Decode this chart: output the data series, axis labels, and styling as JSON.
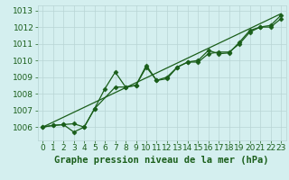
{
  "xlabel": "Graphe pression niveau de la mer (hPa)",
  "x_ticks": [
    0,
    1,
    2,
    3,
    4,
    5,
    6,
    7,
    8,
    9,
    10,
    11,
    12,
    13,
    14,
    15,
    16,
    17,
    18,
    19,
    20,
    21,
    22,
    23
  ],
  "ylim": [
    1005.2,
    1013.3
  ],
  "yticks": [
    1006,
    1007,
    1008,
    1009,
    1010,
    1011,
    1012,
    1013
  ],
  "line1_x": [
    0,
    1,
    2,
    3,
    4,
    5,
    6,
    7,
    8,
    9,
    10,
    11,
    12,
    13,
    14,
    15,
    16,
    17,
    18,
    19,
    20,
    21,
    22,
    23
  ],
  "line1_y": [
    1006.0,
    1006.1,
    1006.15,
    1006.2,
    1006.0,
    1007.1,
    1008.3,
    1009.3,
    1008.4,
    1008.5,
    1009.7,
    1008.8,
    1008.9,
    1009.6,
    1009.9,
    1010.0,
    1010.6,
    1010.4,
    1010.45,
    1011.1,
    1011.8,
    1012.0,
    1012.1,
    1012.7
  ],
  "line2_x": [
    0,
    1,
    2,
    3,
    4,
    5,
    7,
    8,
    9,
    10,
    11,
    12,
    13,
    14,
    15,
    16,
    17,
    18,
    19,
    20,
    21,
    22,
    23
  ],
  "line2_y": [
    1006.0,
    1006.1,
    1006.15,
    1005.7,
    1006.0,
    1007.1,
    1008.4,
    1008.4,
    1008.5,
    1009.6,
    1008.8,
    1009.0,
    1009.6,
    1009.9,
    1009.9,
    1010.4,
    1010.5,
    1010.5,
    1011.0,
    1011.7,
    1012.0,
    1012.0,
    1012.5
  ],
  "trend_x": [
    0,
    23
  ],
  "trend_y": [
    1006.0,
    1012.8
  ],
  "line_color": "#1a5e1a",
  "marker_style": "D",
  "marker_size": 2.5,
  "bg_color": "#d4efef",
  "grid_color": "#b8d4d4",
  "label_fontsize": 7.5,
  "tick_fontsize": 6.5
}
